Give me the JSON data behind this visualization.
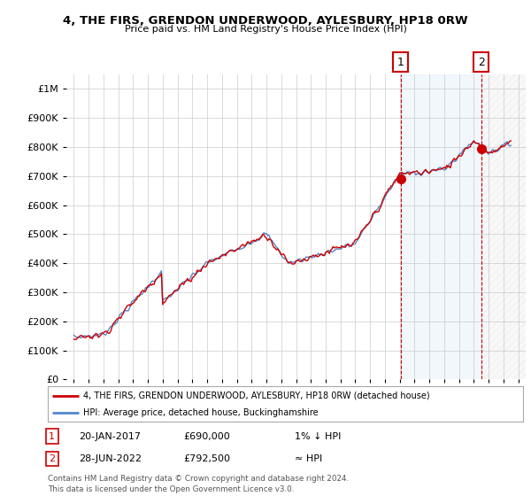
{
  "title": "4, THE FIRS, GRENDON UNDERWOOD, AYLESBURY, HP18 0RW",
  "subtitle": "Price paid vs. HM Land Registry's House Price Index (HPI)",
  "hpi_label": "HPI: Average price, detached house, Buckinghamshire",
  "property_label": "4, THE FIRS, GRENDON UNDERWOOD, AYLESBURY, HP18 0RW (detached house)",
  "copyright": "Contains HM Land Registry data © Crown copyright and database right 2024.\nThis data is licensed under the Open Government Licence v3.0.",
  "sale1_date": "20-JAN-2017",
  "sale1_price": "£690,000",
  "sale1_rel": "1% ↓ HPI",
  "sale2_date": "28-JUN-2022",
  "sale2_price": "£792,500",
  "sale2_rel": "≈ HPI",
  "hpi_color": "#5588cc",
  "property_color": "#cc0000",
  "background_color": "#ffffff",
  "grid_color": "#cccccc",
  "sale1_year": 2017.05,
  "sale2_year": 2022.5,
  "sale1_price_val": 690000,
  "sale2_price_val": 792500,
  "ylim_max": 1050000,
  "xlim_min": 1994.5,
  "xlim_max": 2025.5
}
